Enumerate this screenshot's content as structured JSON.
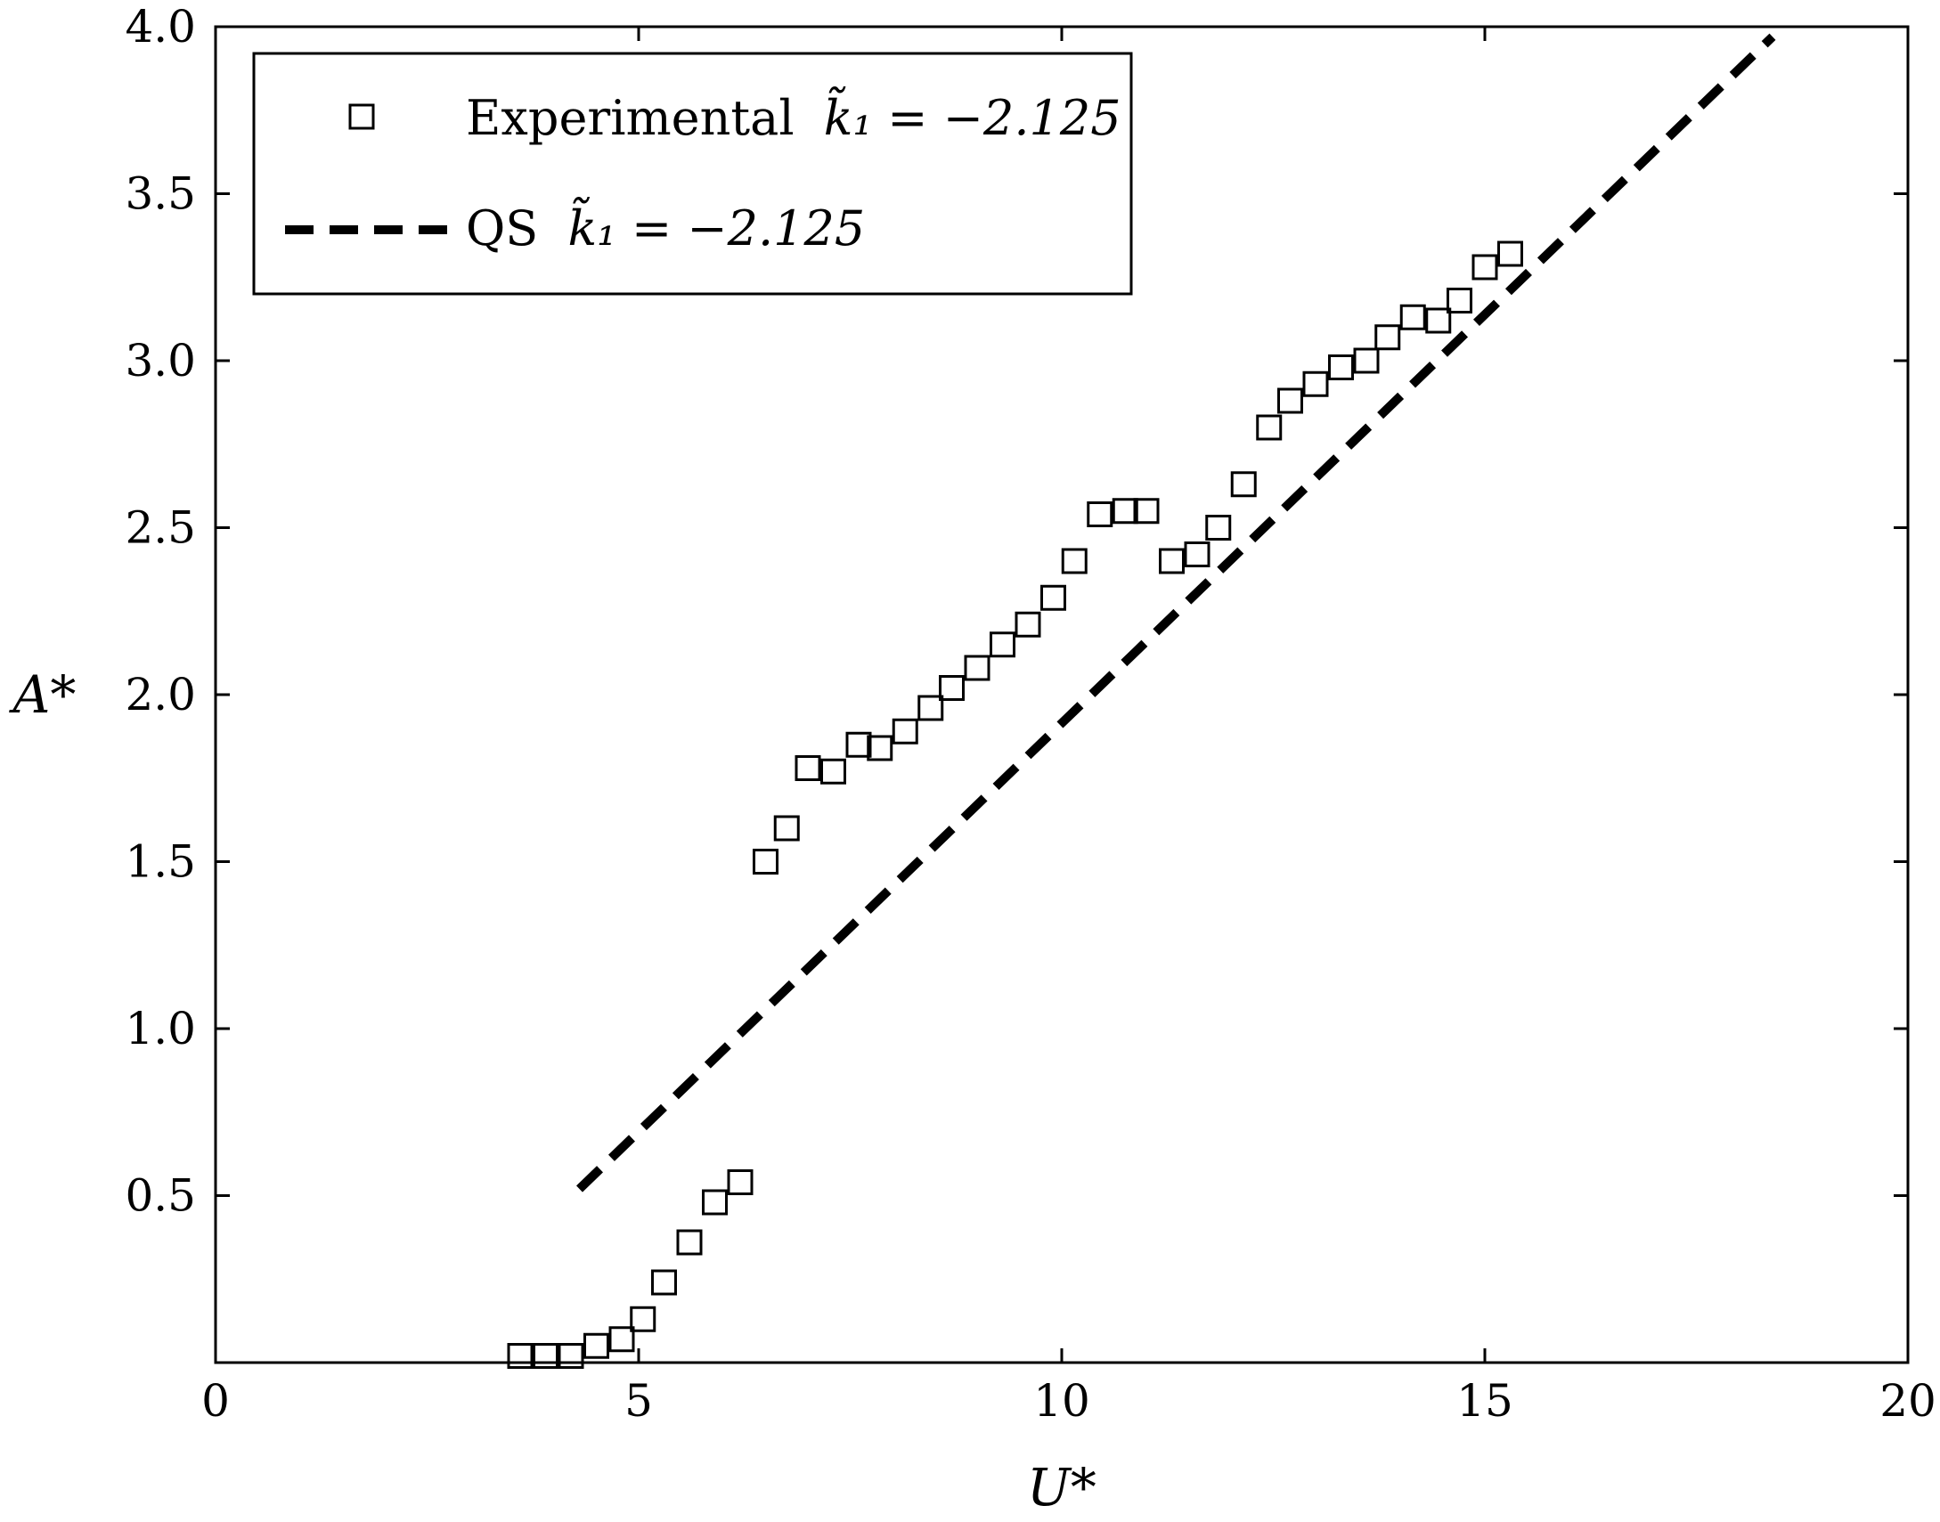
{
  "chart_data": {
    "type": "scatter",
    "xlabel": "U*",
    "ylabel": "A*",
    "xlim": [
      0,
      20
    ],
    "ylim": [
      0,
      4.0
    ],
    "x_ticks": [
      0,
      5,
      10,
      15,
      20
    ],
    "x_tick_labels": [
      "0",
      "5",
      "10",
      "15",
      "20"
    ],
    "y_ticks": [
      0.5,
      1.0,
      1.5,
      2.0,
      2.5,
      3.0,
      3.5,
      4.0
    ],
    "y_tick_labels": [
      "0.5",
      "1.0",
      "1.5",
      "2.0",
      "2.5",
      "3.0",
      "3.5",
      "4.0"
    ],
    "grid": false,
    "legend_position": "top-left",
    "series": [
      {
        "name": "Experimental",
        "legend_param": "k̃₁ = −2.125",
        "marker": "open-square",
        "color": "#000000",
        "points": [
          [
            3.6,
            0.02
          ],
          [
            3.9,
            0.02
          ],
          [
            4.2,
            0.02
          ],
          [
            4.5,
            0.05
          ],
          [
            4.8,
            0.07
          ],
          [
            5.05,
            0.13
          ],
          [
            5.3,
            0.24
          ],
          [
            5.6,
            0.36
          ],
          [
            5.9,
            0.48
          ],
          [
            6.2,
            0.54
          ],
          [
            6.5,
            1.5
          ],
          [
            6.75,
            1.6
          ],
          [
            7.0,
            1.78
          ],
          [
            7.3,
            1.77
          ],
          [
            7.6,
            1.85
          ],
          [
            7.85,
            1.84
          ],
          [
            8.15,
            1.89
          ],
          [
            8.45,
            1.96
          ],
          [
            8.7,
            2.02
          ],
          [
            9.0,
            2.08
          ],
          [
            9.3,
            2.15
          ],
          [
            9.6,
            2.21
          ],
          [
            9.9,
            2.29
          ],
          [
            10.15,
            2.4
          ],
          [
            10.45,
            2.54
          ],
          [
            10.75,
            2.55
          ],
          [
            11.0,
            2.55
          ],
          [
            11.3,
            2.4
          ],
          [
            11.6,
            2.42
          ],
          [
            11.85,
            2.5
          ],
          [
            12.15,
            2.63
          ],
          [
            12.45,
            2.8
          ],
          [
            12.7,
            2.88
          ],
          [
            13.0,
            2.93
          ],
          [
            13.3,
            2.98
          ],
          [
            13.6,
            3.0
          ],
          [
            13.85,
            3.07
          ],
          [
            14.15,
            3.13
          ],
          [
            14.45,
            3.12
          ],
          [
            14.7,
            3.18
          ],
          [
            15.0,
            3.28
          ],
          [
            15.3,
            3.32
          ]
        ]
      },
      {
        "name": "QS",
        "legend_param": "k̃₁ = −2.125",
        "style": "dashed",
        "color": "#000000",
        "points": [
          [
            4.3,
            0.52
          ],
          [
            18.4,
            3.97
          ]
        ]
      }
    ]
  }
}
